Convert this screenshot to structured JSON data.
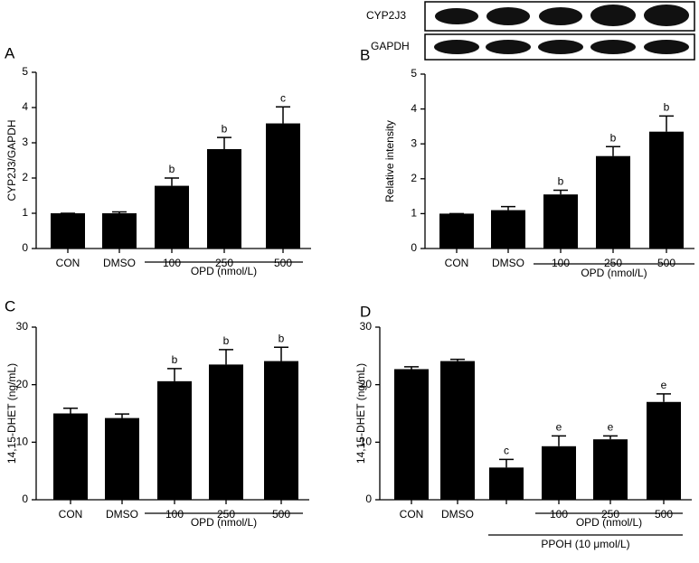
{
  "blot": {
    "rows": [
      "CYP2J3",
      "GAPDH"
    ]
  },
  "chart_data": [
    {
      "type": "bar",
      "label": "A",
      "ylabel": "CYP2J3/GAPDH",
      "categories": [
        "CON",
        "DMSO",
        "100",
        "250",
        "500"
      ],
      "values": [
        1.0,
        1.0,
        1.78,
        2.82,
        3.55
      ],
      "errors": [
        0,
        0.04,
        0.22,
        0.33,
        0.47
      ],
      "annotations": [
        null,
        null,
        "b",
        "b",
        "c"
      ],
      "groups": [
        "OPD (nmol/L)"
      ],
      "color": "#000000",
      "ylim": [
        0,
        5
      ],
      "yticks": [
        0,
        1,
        2,
        3,
        4,
        5
      ],
      "grid": false
    },
    {
      "type": "bar",
      "label": "B",
      "ylabel": "Relative intensity",
      "categories": [
        "CON",
        "DMSO",
        "100",
        "250",
        "500"
      ],
      "values": [
        1.0,
        1.1,
        1.55,
        2.65,
        3.35
      ],
      "errors": [
        0,
        0.1,
        0.12,
        0.27,
        0.45
      ],
      "annotations": [
        null,
        null,
        "b",
        "b",
        "b"
      ],
      "groups": [
        "OPD (nmol/L)"
      ],
      "color": "#000000",
      "ylim": [
        0,
        5
      ],
      "yticks": [
        0,
        1,
        2,
        3,
        4,
        5
      ],
      "grid": false
    },
    {
      "type": "bar",
      "label": "C",
      "ylabel": "14,15-DHET (ng/mL)",
      "categories": [
        "CON",
        "DMSO",
        "100",
        "250",
        "500"
      ],
      "values": [
        15.0,
        14.2,
        20.6,
        23.5,
        24.1
      ],
      "errors": [
        0.9,
        0.7,
        2.2,
        2.6,
        2.4
      ],
      "annotations": [
        null,
        null,
        "b",
        "b",
        "b"
      ],
      "groups": [
        "OPD (nmol/L)"
      ],
      "color": "#000000",
      "ylim": [
        0,
        30
      ],
      "yticks": [
        0,
        10,
        20,
        30
      ],
      "grid": false
    },
    {
      "type": "bar",
      "label": "D",
      "ylabel": "14,15-DHET (ng/mL)",
      "categories": [
        "CON",
        "DMSO",
        null,
        "100",
        "250",
        "500"
      ],
      "values": [
        22.7,
        24.1,
        5.6,
        9.3,
        10.5,
        17.0
      ],
      "errors": [
        0.4,
        0.3,
        1.4,
        1.8,
        0.6,
        1.4
      ],
      "annotations": [
        null,
        null,
        "c",
        "e",
        "e",
        "e"
      ],
      "groups": [
        "OPD (nmol/L)",
        "PPOH (10 μmol/L)"
      ],
      "color": "#000000",
      "ylim": [
        0,
        30
      ],
      "yticks": [
        0,
        10,
        20,
        30
      ],
      "grid": false
    }
  ]
}
